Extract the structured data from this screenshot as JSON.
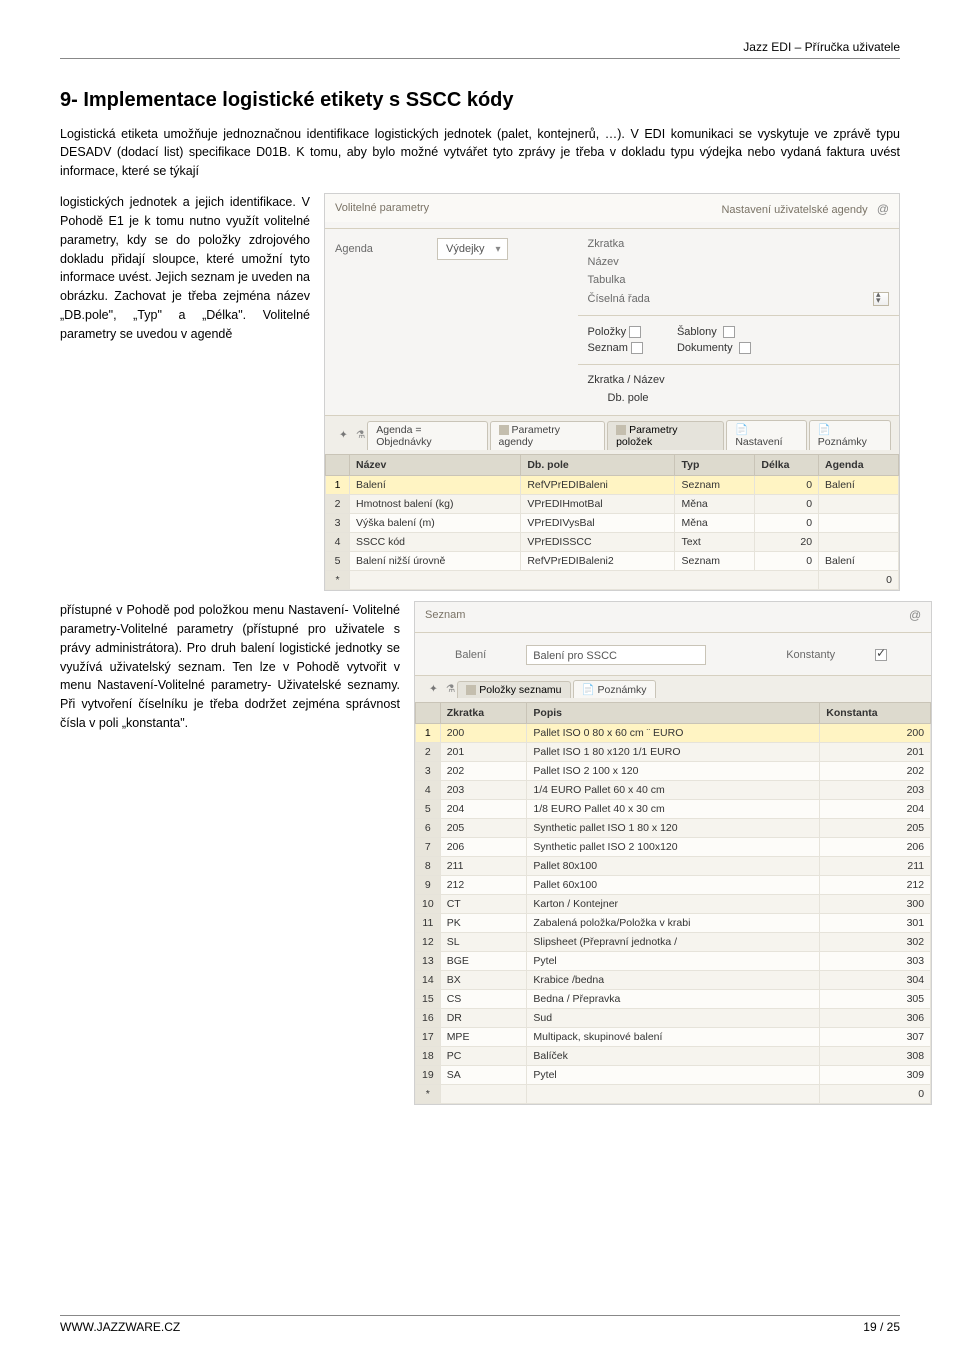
{
  "header_text": "Jazz EDI – Příručka uživatele",
  "heading": "9- Implementace logistické etikety s SSCC kódy",
  "para1": "Logistická etiketa umožňuje jednoznačnou identifikace logistických jednotek (palet, kontejnerů, …). V EDI komunikaci se vyskytuje ve zprávě typu DESADV (dodací list) specifikace D01B. K tomu, aby bylo možné vytvářet tyto zprávy je třeba v dokladu typu výdejka nebo vydaná faktura uvést informace, které se týkají",
  "left_para2": "logistických jednotek a jejich identifikace. V Pohodě E1 je k tomu nutno využít volitelné parametry, kdy se do položky zdrojového dokladu přidají sloupce, které umožní tyto informace uvést. Jejich seznam je uveden na obrázku. Zachovat je třeba zejména název „DB.pole\", „Typ\" a „Délka\". Volitelné parametry se uvedou v agendě",
  "wrap_para3": "přístupné v Pohodě pod položkou menu Nastavení- Volitelné parametry-Volitelné parametry (přístupné pro uživatele s právy administrátora). Pro druh balení logistické jednotky se využívá uživatelský seznam. Ten lze v Pohodě vytvořit v menu Nastavení-Volitelné parametry- Uživatelské seznamy. Při vytvoření číselníku je třeba dodržet zejména správnost čísla v poli „konstanta\".",
  "panel1": {
    "title_left": "Volitelné parametry",
    "title_right": "Nastavení uživatelské agendy",
    "agenda_label": "Agenda",
    "agenda_value": "Výdejky",
    "labels": {
      "zkratka": "Zkratka",
      "nazev": "Název",
      "tabulka": "Tabulka",
      "ciselna": "Číselná řada",
      "polozky": "Položky",
      "seznam": "Seznam",
      "sablony": "Šablony",
      "dokumenty": "Dokumenty",
      "zn": "Zkratka / Název",
      "dbpole": "Db. pole"
    },
    "tabs": [
      "Agenda = Objednávky",
      "Parametry agendy",
      "Parametry položek",
      "Nastavení",
      "Poznámky"
    ],
    "columns": [
      "Název",
      "Db. pole",
      "Typ",
      "Délka",
      "Agenda"
    ],
    "rows": [
      [
        "1",
        "Balení",
        "RefVPrEDIBaleni",
        "Seznam",
        "0",
        "Balení"
      ],
      [
        "2",
        "Hmotnost balení (kg)",
        "VPrEDIHmotBal",
        "Měna",
        "0",
        ""
      ],
      [
        "3",
        "Výška balení (m)",
        "VPrEDIVysBal",
        "Měna",
        "0",
        ""
      ],
      [
        "4",
        "SSCC kód",
        "VPrEDISSCC",
        "Text",
        "20",
        ""
      ],
      [
        "5",
        "Balení nižší úrovně",
        "RefVPrEDIBaleni2",
        "Seznam",
        "0",
        "Balení"
      ],
      [
        "*",
        "",
        "",
        "",
        "",
        "0"
      ]
    ]
  },
  "panel2": {
    "title_left": "Seznam",
    "name_label": "Balení",
    "name_value": "Balení pro SSCC",
    "konst_label": "Konstanty",
    "tabs": [
      "Položky seznamu",
      "Poznámky"
    ],
    "columns": [
      "Zkratka",
      "Popis",
      "Konstanta"
    ],
    "rows": [
      [
        "1",
        "200",
        "Pallet ISO 0 80 x 60 cm ¨ EURO",
        "200"
      ],
      [
        "2",
        "201",
        "Pallet ISO 1 80 x120 1/1 EURO",
        "201"
      ],
      [
        "3",
        "202",
        "Pallet ISO 2 100 x 120",
        "202"
      ],
      [
        "4",
        "203",
        "1/4 EURO Pallet 60 x 40 cm",
        "203"
      ],
      [
        "5",
        "204",
        "1/8 EURO Pallet 40 x 30 cm",
        "204"
      ],
      [
        "6",
        "205",
        "Synthetic pallet ISO 1 80 x 120",
        "205"
      ],
      [
        "7",
        "206",
        "Synthetic pallet ISO 2 100x120",
        "206"
      ],
      [
        "8",
        "211",
        "Pallet 80x100",
        "211"
      ],
      [
        "9",
        "212",
        "Pallet 60x100",
        "212"
      ],
      [
        "10",
        "CT",
        "Karton / Kontejner",
        "300"
      ],
      [
        "11",
        "PK",
        "Zabalená položka/Položka v krabi",
        "301"
      ],
      [
        "12",
        "SL",
        "Slipsheet (Přepravní jednotka /",
        "302"
      ],
      [
        "13",
        "BGE",
        "Pytel",
        "303"
      ],
      [
        "14",
        "BX",
        "Krabice /bedna",
        "304"
      ],
      [
        "15",
        "CS",
        "Bedna / Přepravka",
        "305"
      ],
      [
        "16",
        "DR",
        "Sud",
        "306"
      ],
      [
        "17",
        "MPE",
        "Multipack, skupinové balení",
        "307"
      ],
      [
        "18",
        "PC",
        "Balíček",
        "308"
      ],
      [
        "19",
        "SA",
        "Pytel",
        "309"
      ],
      [
        "*",
        "",
        "",
        "0"
      ]
    ]
  },
  "footer_left": "WWW.JAZZWARE.CZ",
  "footer_right": "19 / 25",
  "colors": {
    "header_bg": "#dddace",
    "highlight": "#fff4c3",
    "rownum_hl": "#ffe17a",
    "panel_bg": "#f6f5f3"
  }
}
